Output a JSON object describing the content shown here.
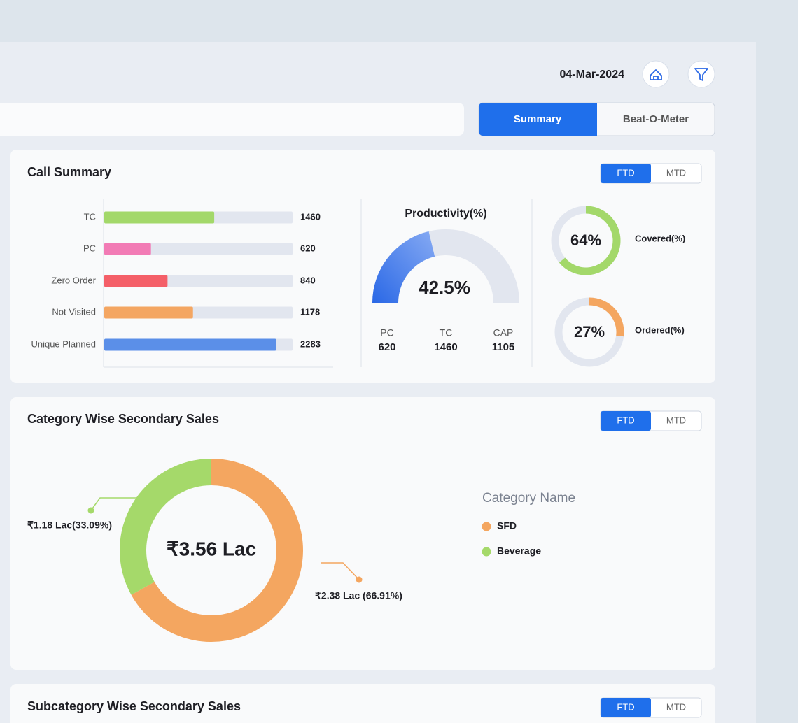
{
  "header": {
    "date": "04-Mar-2024"
  },
  "tabs": [
    "Summary",
    "Beat-O-Meter"
  ],
  "call_summary": {
    "title": "Call Summary",
    "toggle": [
      "FTD",
      "MTD"
    ],
    "bars": {
      "type": "bar",
      "categories": [
        "TC",
        "PC",
        "Zero Order",
        "Not Visited",
        "Unique Planned"
      ],
      "values": [
        1460,
        620,
        840,
        1178,
        2283
      ],
      "colors": [
        "#a3d86a",
        "#f27bb5",
        "#f45f68",
        "#f4a662",
        "#5b8fe8"
      ],
      "xlim": [
        0,
        2500
      ]
    },
    "productivity": {
      "type": "gauge",
      "title": "Productivity(%)",
      "value": 42.5,
      "value_label": "42.5%",
      "range": [
        0,
        100
      ],
      "color": "#3a76ea",
      "stats": [
        {
          "label": "PC",
          "value": 620
        },
        {
          "label": "TC",
          "value": 1460
        },
        {
          "label": "CAP",
          "value": 1105
        }
      ]
    },
    "rings": [
      {
        "type": "donut",
        "label": "Covered(%)",
        "value": 64,
        "value_label": "64%",
        "color": "#a3d86a",
        "range": [
          0,
          100
        ]
      },
      {
        "type": "donut",
        "label": "Ordered(%)",
        "value": 27,
        "value_label": "27%",
        "color": "#f4a660",
        "range": [
          0,
          100
        ]
      }
    ]
  },
  "category_sales": {
    "title": "Category Wise Secondary Sales",
    "toggle": [
      "FTD",
      "MTD"
    ],
    "chart": {
      "type": "pie",
      "center_label": "₹3.56 Lac",
      "legend_title": "Category Name",
      "categories": [
        "SFD",
        "Beverage"
      ],
      "values": [
        66.91,
        33.09
      ],
      "value_labels": [
        "₹2.38 Lac (66.91%)",
        "₹1.18 Lac(33.09%)"
      ],
      "colors": [
        "#f4a660",
        "#a5d96a"
      ]
    }
  },
  "subcategory_sales": {
    "title": "Subcategory Wise Secondary Sales",
    "toggle": [
      "FTD",
      "MTD"
    ]
  }
}
